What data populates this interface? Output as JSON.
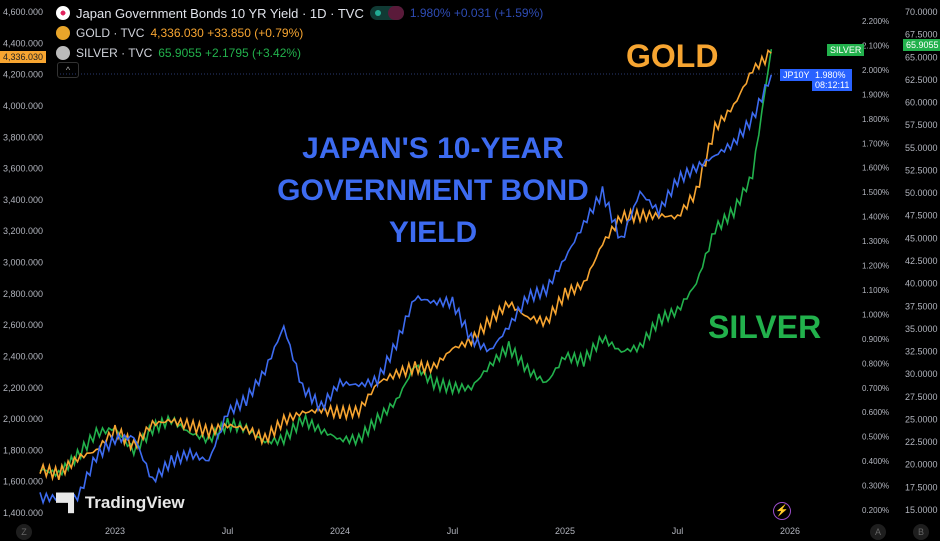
{
  "header": {
    "title": "Japan Government Bonds 10 YR Yield · 1D · TVC",
    "jp_value": "1.980% +0.031 (+1.59%)",
    "gold_label": "GOLD · TVC",
    "gold_value": "4,336.030 +33.850 (+0.79%)",
    "silver_label": "SILVER · TVC",
    "silver_value": "65.9055 +2.1795 (+3.42%)",
    "collapse": "^"
  },
  "annotations": {
    "jp": "JAPAN'S 10-YEAR GOVERNMENT BOND YIELD",
    "gold": "GOLD",
    "silver": "SILVER"
  },
  "badges": {
    "gold_price": "4,336.030",
    "silver_tag": "SILVER",
    "silver_price": "65.9055",
    "jp_tag": "JP10Y",
    "jp_price": "1.980%",
    "jp_countdown": "08:12:11"
  },
  "footer": {
    "logo": "TradingView",
    "left_btn": "Z",
    "btn_a": "A",
    "btn_b": "B"
  },
  "colors": {
    "gold": "#f7a531",
    "silver": "#22b14c",
    "jp": "#3d6bf0",
    "background": "#000000"
  },
  "chart_data": {
    "type": "line",
    "x": [
      "2022-09",
      "2022-10",
      "2022-11",
      "2022-12",
      "2023-01",
      "2023-02",
      "2023-03",
      "2023-04",
      "2023-05",
      "2023-06",
      "2023-07",
      "2023-08",
      "2023-09",
      "2023-10",
      "2023-11",
      "2023-12",
      "2024-01",
      "2024-02",
      "2024-03",
      "2024-04",
      "2024-05",
      "2024-06",
      "2024-07",
      "2024-08",
      "2024-09",
      "2024-10",
      "2024-11",
      "2024-12",
      "2025-01",
      "2025-02",
      "2025-03",
      "2025-04",
      "2025-05",
      "2025-06",
      "2025-07",
      "2025-08",
      "2025-09",
      "2025-10",
      "2025-11",
      "2025-12"
    ],
    "x_ticks": [
      "2023",
      "Jul",
      "2024",
      "Jul",
      "2025",
      "Jul",
      "2026"
    ],
    "axes": {
      "gold": {
        "ticks": [
          "1,400.000",
          "1,600.000",
          "1,800.000",
          "2,000.000",
          "2,200.000",
          "2,400.000",
          "2,600.000",
          "2,800.000",
          "3,000.000",
          "3,200.000",
          "3,400.000",
          "3,600.000",
          "3,800.000",
          "4,000.000",
          "4,200.000",
          "4,400.000",
          "4,600.000"
        ],
        "range": [
          1400,
          4600
        ]
      },
      "jp": {
        "ticks": [
          "0.200%",
          "0.300%",
          "0.400%",
          "0.500%",
          "0.600%",
          "0.700%",
          "0.800%",
          "0.900%",
          "1.000%",
          "1.100%",
          "1.200%",
          "1.300%",
          "1.400%",
          "1.500%",
          "1.600%",
          "1.700%",
          "1.800%",
          "1.900%",
          "2.000%",
          "2.100%",
          "2.200%"
        ],
        "range": [
          0.2,
          2.2
        ]
      },
      "silver": {
        "ticks": [
          "15.0000",
          "17.5000",
          "20.0000",
          "22.5000",
          "25.0000",
          "27.5000",
          "30.0000",
          "32.5000",
          "35.0000",
          "37.5000",
          "40.0000",
          "42.5000",
          "45.0000",
          "47.5000",
          "50.0000",
          "52.5000",
          "55.0000",
          "57.5000",
          "60.0000",
          "62.5000",
          "65.0000",
          "67.5000",
          "70.0000"
        ],
        "range": [
          15,
          70
        ]
      }
    },
    "series": [
      {
        "name": "GOLD",
        "axis": "gold",
        "values": [
          1680,
          1650,
          1750,
          1800,
          1930,
          1830,
          1970,
          1990,
          1960,
          1920,
          1960,
          1940,
          1870,
          1990,
          2040,
          2060,
          2040,
          2050,
          2230,
          2290,
          2330,
          2330,
          2450,
          2500,
          2630,
          2740,
          2650,
          2620,
          2800,
          2860,
          3120,
          3290,
          3300,
          3300,
          3290,
          3450,
          3860,
          4000,
          4230,
          4336
        ]
      },
      {
        "name": "Japan Government Bonds 10 YR Yield",
        "axis": "jp",
        "values": [
          0.25,
          0.25,
          0.25,
          0.42,
          0.49,
          0.5,
          0.32,
          0.4,
          0.43,
          0.4,
          0.6,
          0.65,
          0.77,
          0.95,
          0.7,
          0.62,
          0.72,
          0.71,
          0.73,
          0.88,
          1.07,
          1.05,
          1.05,
          0.9,
          0.85,
          0.95,
          1.07,
          1.1,
          1.23,
          1.37,
          1.5,
          1.3,
          1.5,
          1.42,
          1.55,
          1.6,
          1.65,
          1.7,
          1.8,
          1.98
        ]
      },
      {
        "name": "SILVER",
        "axis": "silver",
        "values": [
          19.5,
          19,
          21,
          23.5,
          24,
          21.5,
          24,
          25,
          23.5,
          22.8,
          24.5,
          24,
          22.5,
          22.8,
          25,
          23.8,
          22.8,
          22.8,
          25,
          27,
          31,
          29,
          28.5,
          28.5,
          31,
          33,
          30.5,
          29,
          32,
          31.5,
          34,
          32.5,
          33,
          36,
          37,
          40,
          46,
          48,
          52,
          65.9
        ]
      }
    ]
  }
}
